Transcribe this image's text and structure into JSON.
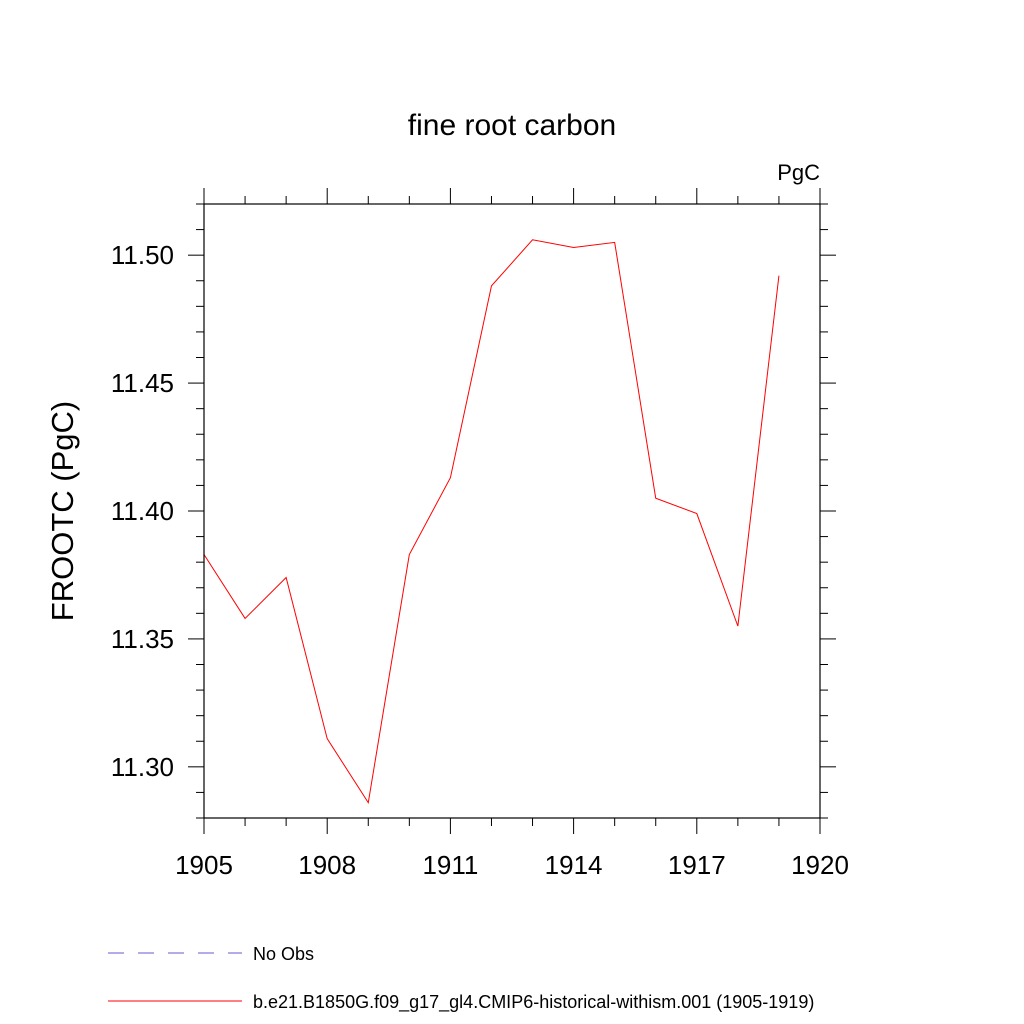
{
  "chart_data": {
    "type": "line",
    "title": "fine root carbon",
    "units_label": "PgC",
    "ylabel": "FROOTC  (PgC)",
    "xlabel": "",
    "xlim": [
      1905,
      1920
    ],
    "ylim": [
      11.28,
      11.52
    ],
    "x_ticks": [
      1905,
      1908,
      1911,
      1914,
      1917,
      1920
    ],
    "y_ticks": [
      11.3,
      11.35,
      11.4,
      11.45,
      11.5
    ],
    "grid": false,
    "legend_position": "bottom-left",
    "series": [
      {
        "name": "No Obs",
        "color": "#6a5acd",
        "style": "dashed",
        "x": [],
        "values": []
      },
      {
        "name": "b.e21.B1850G.f09_g17_gl4.CMIP6-historical-withism.001 (1905-1919)",
        "color": "#ff0000",
        "style": "solid",
        "x": [
          1905,
          1906,
          1907,
          1908,
          1909,
          1910,
          1911,
          1912,
          1913,
          1914,
          1915,
          1916,
          1917,
          1918,
          1919
        ],
        "values": [
          11.383,
          11.358,
          11.374,
          11.311,
          11.286,
          11.383,
          11.413,
          11.488,
          11.506,
          11.503,
          11.505,
          11.405,
          11.399,
          11.355,
          11.492
        ]
      }
    ]
  }
}
